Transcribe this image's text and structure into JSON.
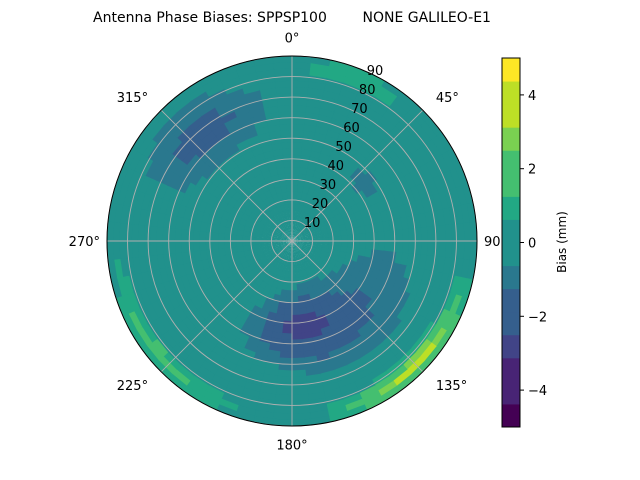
{
  "chart_data": {
    "type": "heatmap",
    "projection": "polar",
    "title": "Antenna Phase Biases: SPPSP100        NONE GALILEO-E1",
    "angular_axis": {
      "zero_location": "top",
      "direction": "clockwise",
      "tick_labels": [
        {
          "angle": 0,
          "label": "0°"
        },
        {
          "angle": 45,
          "label": "45°"
        },
        {
          "angle": 90,
          "label": "90°"
        },
        {
          "angle": 135,
          "label": "135°"
        },
        {
          "angle": 180,
          "label": "180°"
        },
        {
          "angle": 225,
          "label": "225°"
        },
        {
          "angle": 270,
          "label": "270°"
        },
        {
          "angle": 315,
          "label": "315°"
        }
      ]
    },
    "radial_axis": {
      "range": [
        0,
        90
      ],
      "ticks": [
        10,
        20,
        30,
        40,
        50,
        60,
        70,
        80,
        90
      ],
      "tick_labels": [
        "10",
        "20",
        "30",
        "40",
        "50",
        "60",
        "70",
        "80",
        "90"
      ],
      "label_angle": 22.5
    },
    "grid": true,
    "colorbar": {
      "label": "Bias (mm)",
      "range": [
        -5,
        5
      ],
      "levels": [
        -5,
        -4.375,
        -3.75,
        -3.125,
        -2.5,
        -1.875,
        -1.25,
        -0.625,
        0,
        0.625,
        1.25,
        1.875,
        2.5,
        3.125,
        3.75,
        4.375,
        5
      ],
      "ticks": [
        -4,
        -2,
        0,
        2,
        4
      ],
      "tick_labels": [
        "−4",
        "−2",
        "0",
        "2",
        "4"
      ],
      "colors": [
        "#440154",
        "#482475",
        "#414487",
        "#355f8d",
        "#2a788e",
        "#21918c",
        "#22a884",
        "#44bf70",
        "#7ad151",
        "#bddf26",
        "#fde725"
      ]
    },
    "field": {
      "description_units": "mm",
      "center_value": 0.1,
      "regions": [
        {
          "azimuth_range": [
            90,
            200
          ],
          "zenith_range": [
            20,
            70
          ],
          "bias": -1.3
        },
        {
          "azimuth_range": [
            150,
            200
          ],
          "zenith_range": [
            30,
            55
          ],
          "bias": -1.9
        },
        {
          "azimuth_range": [
            290,
            350
          ],
          "zenith_range": [
            50,
            85
          ],
          "bias": -1.5
        },
        {
          "azimuth_range": [
            30,
            70
          ],
          "zenith_range": [
            30,
            60
          ],
          "bias": -0.6
        },
        {
          "azimuth_range": [
            110,
            160
          ],
          "zenith_range": [
            80,
            90
          ],
          "bias": 3.5
        },
        {
          "azimuth_range": [
            200,
            260
          ],
          "zenith_range": [
            80,
            90
          ],
          "bias": 1.6
        },
        {
          "azimuth_range": [
            0,
            40
          ],
          "zenith_range": [
            80,
            90
          ],
          "bias": 1.2
        }
      ]
    }
  }
}
